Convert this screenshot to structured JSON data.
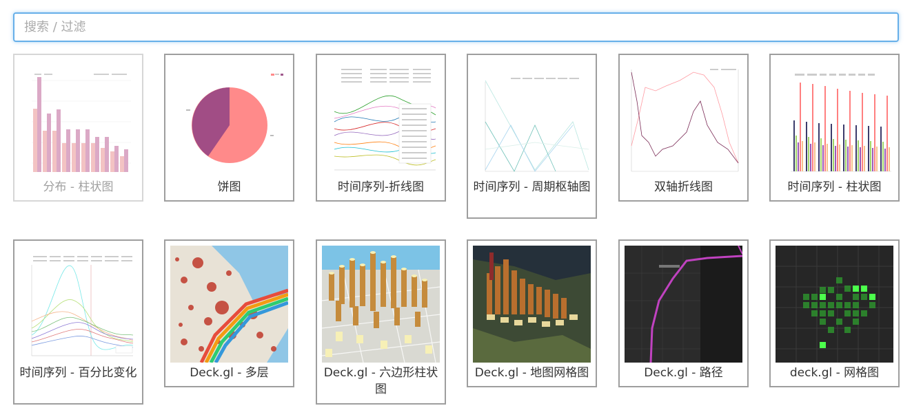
{
  "search": {
    "placeholder": "搜索 / 过滤"
  },
  "gallery": [
    {
      "label": "分布 - 柱状图"
    },
    {
      "label": "饼图"
    },
    {
      "label": "时间序列-折线图"
    },
    {
      "label": "时间序列 - 周期枢轴图"
    },
    {
      "label": "双轴折线图"
    },
    {
      "label": "时间序列 - 柱状图"
    },
    {
      "label": "时间序列 - 百分比变化"
    },
    {
      "label": "Deck.gl - 多层"
    },
    {
      "label": "Deck.gl - 六边形柱状图"
    },
    {
      "label": "Deck.gl - 地图网格图"
    },
    {
      "label": "Deck.gl - 路径"
    },
    {
      "label": "deck.gl - 网格图"
    }
  ],
  "colors": {
    "focus_border": "#66afe9",
    "card_border": "#9e9e9e",
    "faded_border": "#d6d6d6"
  }
}
